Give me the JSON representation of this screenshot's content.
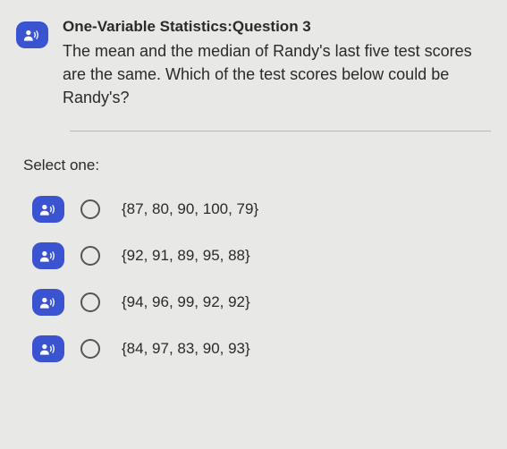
{
  "question": {
    "title": "One-Variable Statistics:Question 3",
    "text": "The mean and the median of Randy's last five test scores are the same. Which of the test scores below could be Randy's?"
  },
  "select_label": "Select one:",
  "options": [
    {
      "label": "{87, 80, 90, 100, 79}"
    },
    {
      "label": "{92, 91, 89, 95, 88}"
    },
    {
      "label": "{94, 96, 99, 92, 92}"
    },
    {
      "label": "{84, 97, 83, 90, 93}"
    }
  ],
  "colors": {
    "icon_bg": "#3a53d0",
    "icon_fg": "#ffffff",
    "page_bg": "#e8e8e6",
    "text": "#2a2a2a",
    "divider": "#b8b8b6",
    "radio_border": "#555555"
  }
}
